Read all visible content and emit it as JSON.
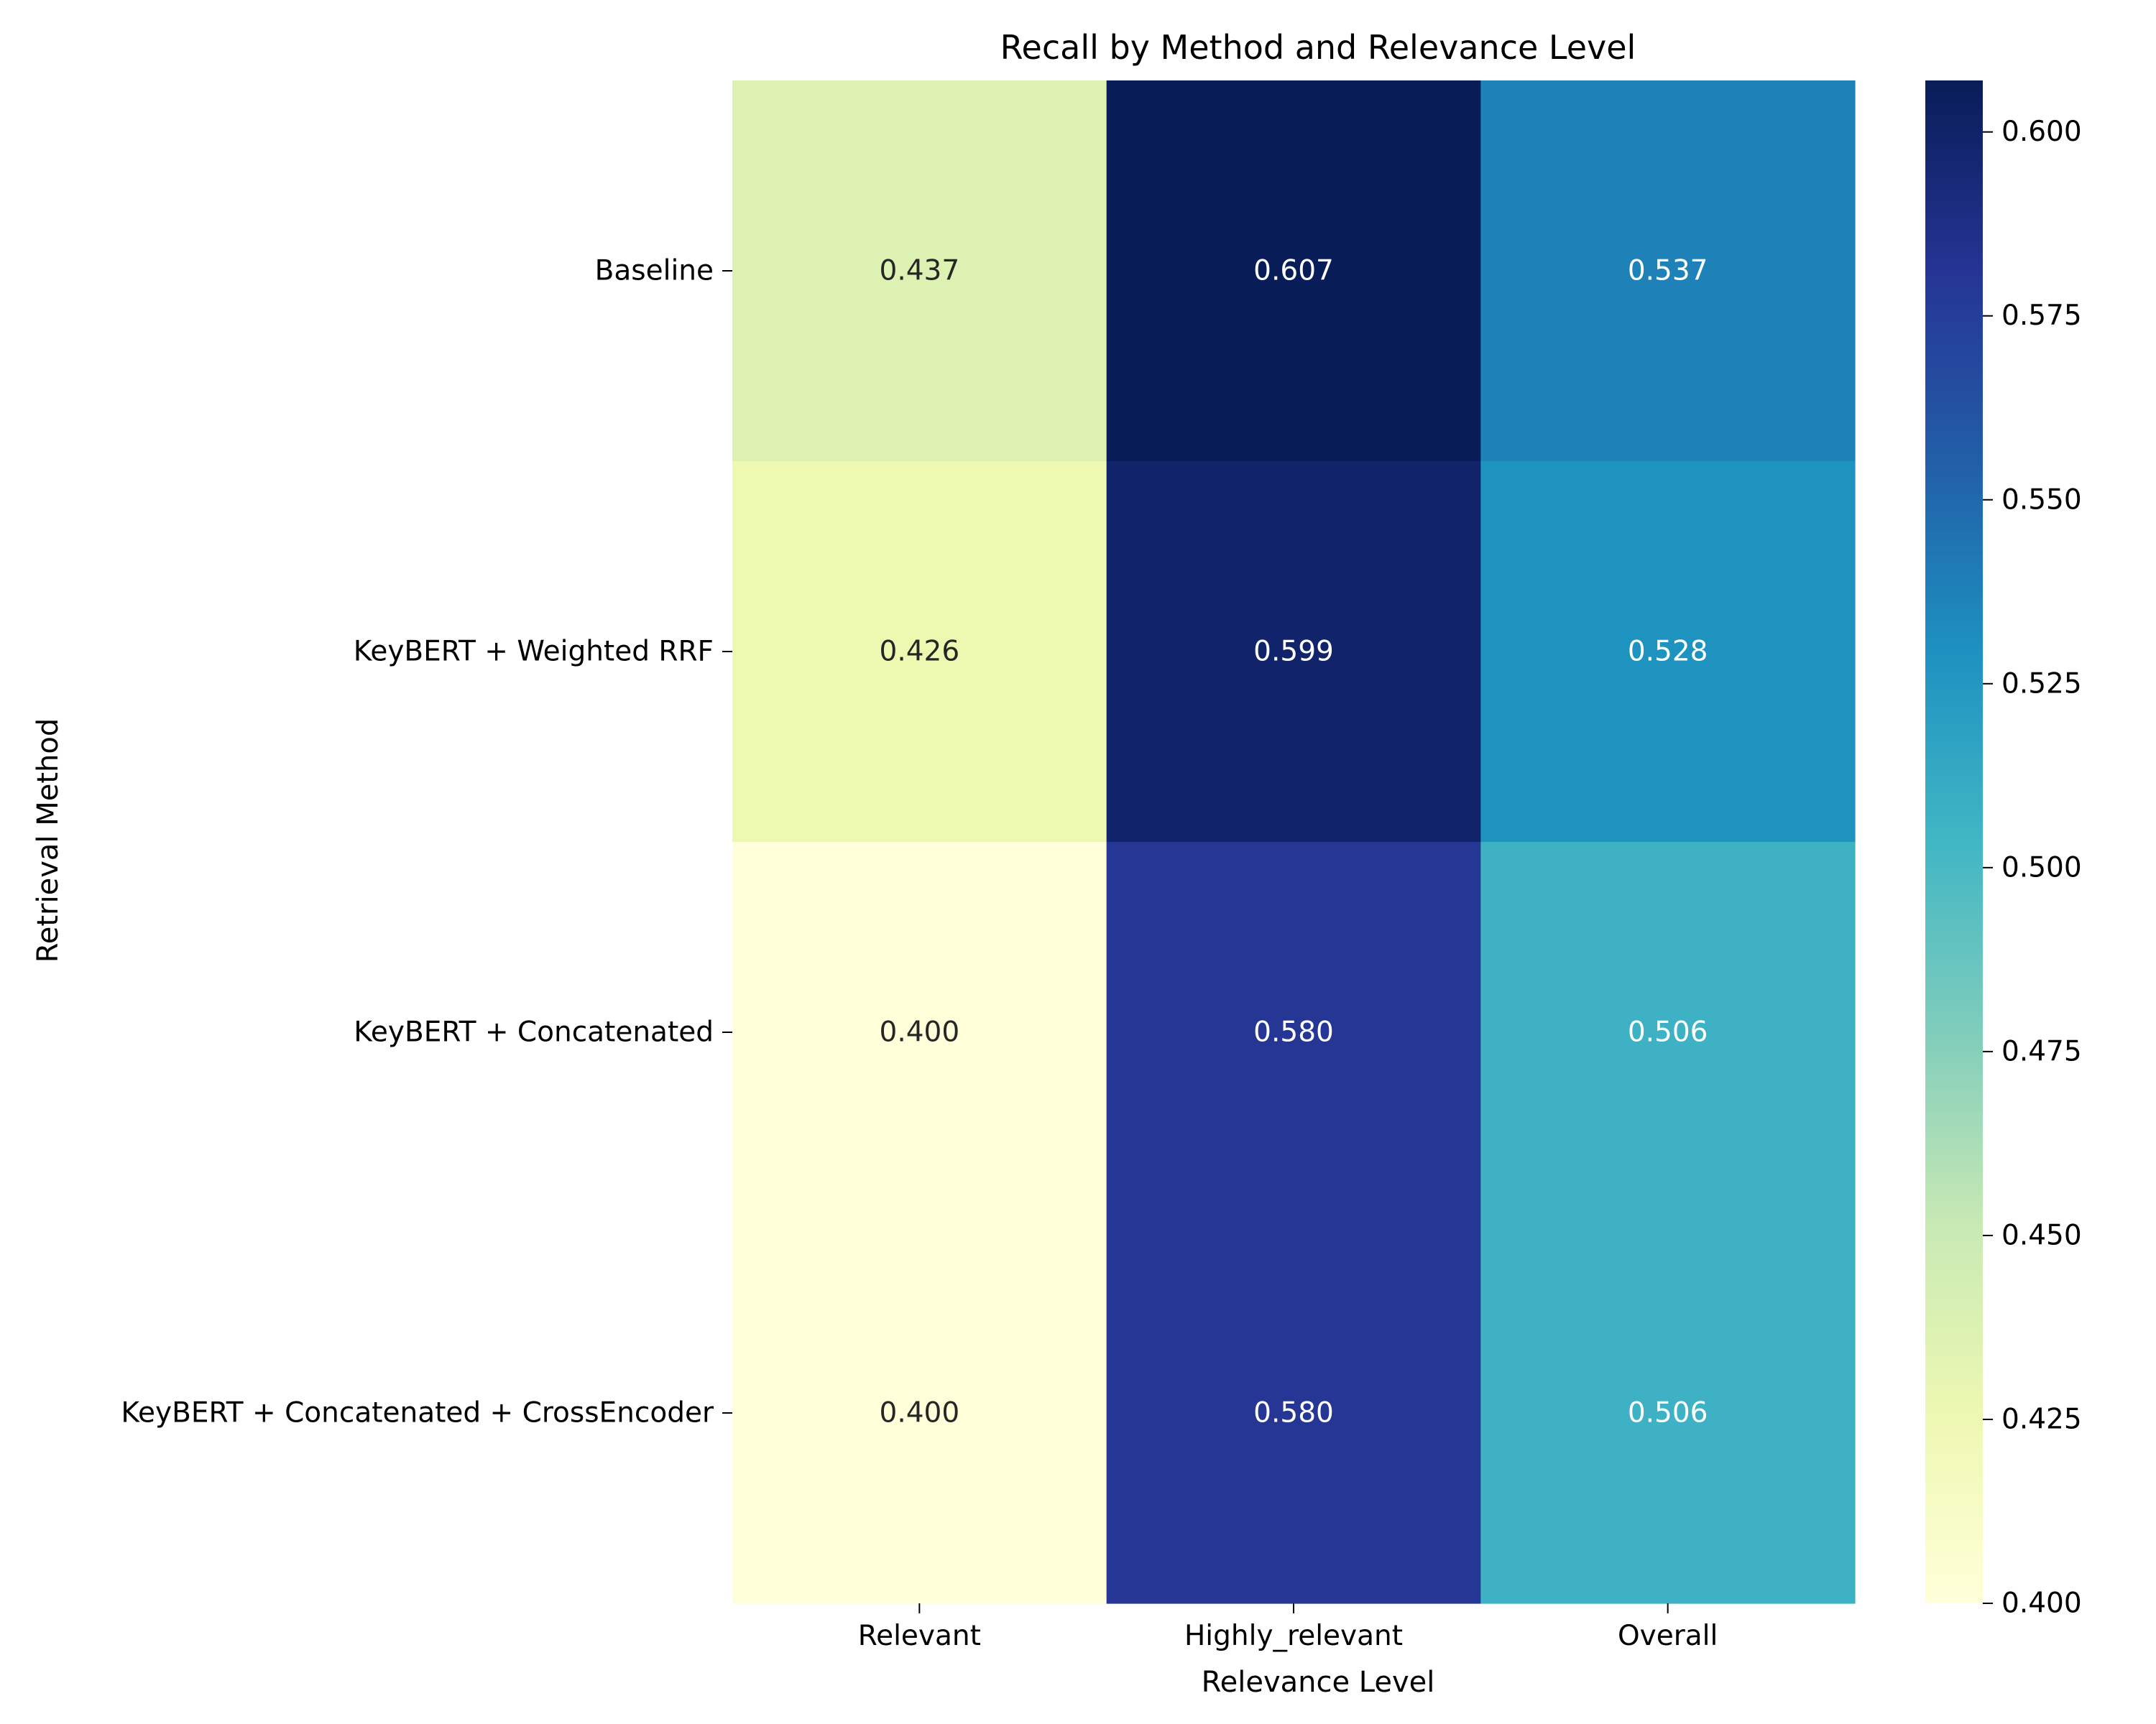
{
  "chart_data": {
    "type": "heatmap",
    "title": "Recall by Method and Relevance Level",
    "xlabel": "Relevance Level",
    "ylabel": "Retrieval Method",
    "columns": [
      "Relevant",
      "Highly_relevant",
      "Overall"
    ],
    "rows": [
      "Baseline",
      "KeyBERT + Weighted RRF",
      "KeyBERT + Concatenated",
      "KeyBERT + Concatenated + CrossEncoder"
    ],
    "values": [
      [
        0.437,
        0.607,
        0.537
      ],
      [
        0.426,
        0.599,
        0.528
      ],
      [
        0.4,
        0.58,
        0.506
      ],
      [
        0.4,
        0.58,
        0.506
      ]
    ],
    "value_labels": [
      [
        "0.437",
        "0.607",
        "0.537"
      ],
      [
        "0.426",
        "0.599",
        "0.528"
      ],
      [
        "0.400",
        "0.580",
        "0.506"
      ],
      [
        "0.400",
        "0.580",
        "0.506"
      ]
    ],
    "colormap": "YlGnBu",
    "colorbar": {
      "min": 0.4,
      "max": 0.607,
      "ticks": [
        0.4,
        0.425,
        0.45,
        0.475,
        0.5,
        0.525,
        0.55,
        0.575,
        0.6
      ],
      "tick_labels": [
        "0.400",
        "0.425",
        "0.450",
        "0.475",
        "0.500",
        "0.525",
        "0.550",
        "0.575",
        "0.600"
      ]
    },
    "grid": false,
    "legend": "colorbar-right"
  }
}
